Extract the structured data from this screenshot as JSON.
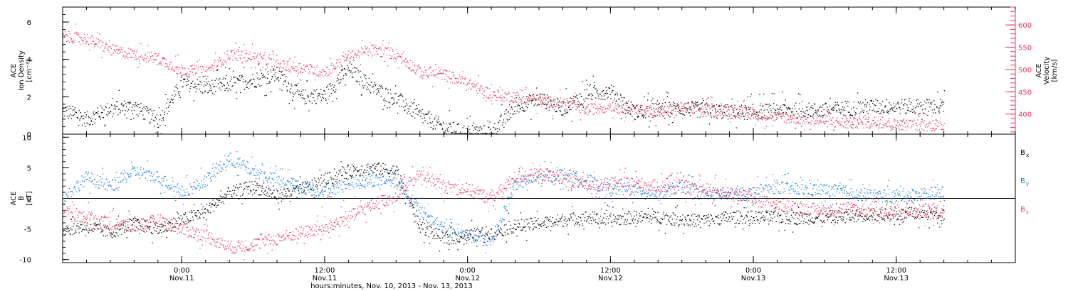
{
  "chart_data": [
    {
      "type": "scatter",
      "panel": "top",
      "x_range": [
        "2013-11-10 14:00",
        "2013-11-13 22:00"
      ],
      "left_axis": {
        "label_lines": [
          "ACE",
          "Ion Density",
          "[cm⁻³]"
        ],
        "ylim": [
          0,
          6.8
        ],
        "ticks": [
          "0",
          "2",
          "4",
          "6"
        ],
        "tick_values": [
          0,
          2,
          4,
          6
        ]
      },
      "right_axis": {
        "label_lines": [
          "ACE",
          "Velocity",
          "[km/s]"
        ],
        "ylim": [
          355,
          640
        ],
        "ticks": [
          "400",
          "450",
          "500",
          "550",
          "600"
        ],
        "tick_values": [
          400,
          450,
          500,
          550,
          600
        ],
        "color": "#e8335f"
      },
      "series": [
        {
          "axis": "left",
          "color": "#000000",
          "x": [
            "2013-11-10 14:00",
            "2013-11-10 16:00",
            "2013-11-10 18:00",
            "2013-11-10 20:00",
            "2013-11-10 22:00",
            "2013-11-11 00:00",
            "2013-11-11 02:00",
            "2013-11-11 04:00",
            "2013-11-11 06:00",
            "2013-11-11 08:00",
            "2013-11-11 10:00",
            "2013-11-11 12:00",
            "2013-11-11 14:00",
            "2013-11-11 16:00",
            "2013-11-11 18:00",
            "2013-11-11 20:00",
            "2013-11-11 22:00",
            "2013-11-12 00:00",
            "2013-11-12 02:00",
            "2013-11-12 04:00",
            "2013-11-12 06:00",
            "2013-11-12 08:00",
            "2013-11-12 10:00",
            "2013-11-12 12:00",
            "2013-11-12 14:00",
            "2013-11-12 16:00",
            "2013-11-12 18:00",
            "2013-11-12 20:00",
            "2013-11-12 22:00",
            "2013-11-13 00:00",
            "2013-11-13 02:00",
            "2013-11-13 04:00",
            "2013-11-13 06:00",
            "2013-11-13 08:00",
            "2013-11-13 10:00",
            "2013-11-13 12:00",
            "2013-11-13 14:00",
            "2013-11-13 16:00"
          ],
          "values": [
            1.3,
            0.8,
            1.4,
            1.5,
            0.7,
            2.8,
            2.5,
            2.7,
            2.9,
            3.2,
            2.0,
            2.1,
            3.5,
            2.5,
            1.9,
            1.0,
            0.4,
            0.1,
            0.1,
            1.5,
            1.9,
            1.4,
            2.2,
            2.3,
            1.2,
            1.3,
            1.4,
            1.3,
            1.2,
            1.2,
            1.3,
            1.3,
            1.3,
            1.4,
            1.5,
            1.5,
            1.5,
            1.5
          ]
        },
        {
          "axis": "right",
          "color": "#e8335f",
          "x": [
            "2013-11-10 14:00",
            "2013-11-10 16:00",
            "2013-11-10 18:00",
            "2013-11-10 20:00",
            "2013-11-10 22:00",
            "2013-11-11 00:00",
            "2013-11-11 02:00",
            "2013-11-11 04:00",
            "2013-11-11 06:00",
            "2013-11-11 08:00",
            "2013-11-11 10:00",
            "2013-11-11 12:00",
            "2013-11-11 14:00",
            "2013-11-11 16:00",
            "2013-11-11 18:00",
            "2013-11-11 20:00",
            "2013-11-11 22:00",
            "2013-11-12 00:00",
            "2013-11-12 02:00",
            "2013-11-12 04:00",
            "2013-11-12 06:00",
            "2013-11-12 08:00",
            "2013-11-12 10:00",
            "2013-11-12 12:00",
            "2013-11-12 14:00",
            "2013-11-12 16:00",
            "2013-11-12 18:00",
            "2013-11-12 20:00",
            "2013-11-12 22:00",
            "2013-11-13 00:00",
            "2013-11-13 02:00",
            "2013-11-13 04:00",
            "2013-11-13 06:00",
            "2013-11-13 08:00",
            "2013-11-13 10:00",
            "2013-11-13 12:00",
            "2013-11-13 14:00",
            "2013-11-13 16:00"
          ],
          "values": [
            575,
            570,
            545,
            535,
            525,
            500,
            495,
            535,
            530,
            510,
            505,
            495,
            530,
            545,
            535,
            495,
            490,
            470,
            445,
            440,
            430,
            425,
            410,
            420,
            410,
            405,
            415,
            410,
            408,
            400,
            395,
            390,
            385,
            380,
            383,
            378,
            376,
            375
          ]
        }
      ]
    },
    {
      "type": "scatter",
      "panel": "bottom",
      "x_range": [
        "2013-11-10 14:00",
        "2013-11-13 22:00"
      ],
      "left_axis": {
        "label_lines": [
          "ACE",
          "B",
          "[nT]"
        ],
        "ylim": [
          -10.5,
          10.5
        ],
        "ticks": [
          "-10",
          "-5",
          "0",
          "5",
          "10"
        ],
        "tick_values": [
          -10,
          -5,
          0,
          5,
          10
        ]
      },
      "zero_line": 0,
      "series": [
        {
          "name": "B",
          "subscript": "x",
          "color": "#000000",
          "x": [
            "2013-11-10 14:00",
            "2013-11-10 16:00",
            "2013-11-10 18:00",
            "2013-11-10 20:00",
            "2013-11-10 22:00",
            "2013-11-11 00:00",
            "2013-11-11 02:00",
            "2013-11-11 04:00",
            "2013-11-11 06:00",
            "2013-11-11 08:00",
            "2013-11-11 10:00",
            "2013-11-11 12:00",
            "2013-11-11 14:00",
            "2013-11-11 16:00",
            "2013-11-11 18:00",
            "2013-11-11 20:00",
            "2013-11-11 22:00",
            "2013-11-12 00:00",
            "2013-11-12 02:00",
            "2013-11-12 04:00",
            "2013-11-12 06:00",
            "2013-11-12 08:00",
            "2013-11-12 10:00",
            "2013-11-12 12:00",
            "2013-11-12 14:00",
            "2013-11-12 16:00",
            "2013-11-12 18:00",
            "2013-11-12 20:00",
            "2013-11-12 22:00",
            "2013-11-13 00:00",
            "2013-11-13 02:00",
            "2013-11-13 04:00",
            "2013-11-13 06:00",
            "2013-11-13 08:00",
            "2013-11-13 10:00",
            "2013-11-13 12:00",
            "2013-11-13 14:00",
            "2013-11-13 16:00"
          ],
          "values": [
            -5.0,
            -4.5,
            -5.5,
            -4.0,
            -5.0,
            -3.5,
            -2.0,
            1.0,
            2.0,
            0.5,
            1.5,
            3.0,
            4.5,
            5.0,
            4.5,
            -4.5,
            -6.5,
            -6.0,
            -5.5,
            -4.5,
            -4.0,
            -3.5,
            -3.0,
            -3.5,
            -3.0,
            -3.0,
            -3.5,
            -3.5,
            -3.0,
            -3.0,
            -3.0,
            -3.2,
            -3.0,
            -2.8,
            -2.6,
            -2.6,
            -2.5,
            -2.5
          ]
        },
        {
          "name": "B",
          "subscript": "y",
          "color": "#1a7de0",
          "x": [
            "2013-11-10 14:00",
            "2013-11-10 16:00",
            "2013-11-10 18:00",
            "2013-11-10 20:00",
            "2013-11-10 22:00",
            "2013-11-11 00:00",
            "2013-11-11 02:00",
            "2013-11-11 04:00",
            "2013-11-11 06:00",
            "2013-11-11 08:00",
            "2013-11-11 10:00",
            "2013-11-11 12:00",
            "2013-11-11 14:00",
            "2013-11-11 16:00",
            "2013-11-11 18:00",
            "2013-11-11 20:00",
            "2013-11-11 22:00",
            "2013-11-12 00:00",
            "2013-11-12 02:00",
            "2013-11-12 04:00",
            "2013-11-12 06:00",
            "2013-11-12 08:00",
            "2013-11-12 10:00",
            "2013-11-12 12:00",
            "2013-11-12 14:00",
            "2013-11-12 16:00",
            "2013-11-12 18:00",
            "2013-11-12 20:00",
            "2013-11-12 22:00",
            "2013-11-13 00:00",
            "2013-11-13 02:00",
            "2013-11-13 04:00",
            "2013-11-13 06:00",
            "2013-11-13 08:00",
            "2013-11-13 10:00",
            "2013-11-13 12:00",
            "2013-11-13 14:00",
            "2013-11-13 16:00"
          ],
          "values": [
            0.0,
            3.5,
            2.0,
            4.5,
            3.5,
            1.0,
            3.0,
            6.5,
            4.5,
            3.0,
            2.0,
            1.0,
            2.5,
            3.0,
            3.0,
            -2.0,
            -5.0,
            -6.0,
            -7.0,
            2.5,
            3.5,
            4.0,
            3.0,
            1.5,
            1.5,
            1.0,
            2.0,
            1.0,
            0.5,
            1.0,
            2.0,
            1.5,
            1.5,
            1.0,
            0.5,
            0.5,
            0.8,
            1.0
          ]
        },
        {
          "name": "B",
          "subscript": "z",
          "color": "#e8335f",
          "x": [
            "2013-11-10 14:00",
            "2013-11-10 16:00",
            "2013-11-10 18:00",
            "2013-11-10 20:00",
            "2013-11-10 22:00",
            "2013-11-11 00:00",
            "2013-11-11 02:00",
            "2013-11-11 04:00",
            "2013-11-11 06:00",
            "2013-11-11 08:00",
            "2013-11-11 10:00",
            "2013-11-11 12:00",
            "2013-11-11 14:00",
            "2013-11-11 16:00",
            "2013-11-11 18:00",
            "2013-11-11 20:00",
            "2013-11-11 22:00",
            "2013-11-12 00:00",
            "2013-11-12 02:00",
            "2013-11-12 04:00",
            "2013-11-12 06:00",
            "2013-11-12 08:00",
            "2013-11-12 10:00",
            "2013-11-12 12:00",
            "2013-11-12 14:00",
            "2013-11-12 16:00",
            "2013-11-12 18:00",
            "2013-11-12 20:00",
            "2013-11-12 22:00",
            "2013-11-13 00:00",
            "2013-11-13 02:00",
            "2013-11-13 04:00",
            "2013-11-13 06:00",
            "2013-11-13 08:00",
            "2013-11-13 10:00",
            "2013-11-13 12:00",
            "2013-11-13 14:00",
            "2013-11-13 16:00"
          ],
          "values": [
            -2.0,
            -3.0,
            -4.0,
            -4.5,
            -3.5,
            -5.0,
            -6.0,
            -8.0,
            -7.5,
            -6.5,
            -5.5,
            -5.0,
            -3.0,
            -1.0,
            0.5,
            4.0,
            2.0,
            1.5,
            0.0,
            3.5,
            4.0,
            3.5,
            2.0,
            2.5,
            2.5,
            2.0,
            2.0,
            1.5,
            1.0,
            0.0,
            -1.0,
            -1.5,
            -2.0,
            -1.5,
            -2.0,
            -2.5,
            -2.0,
            -2.0
          ]
        }
      ]
    }
  ],
  "x_axis": {
    "ticks": [
      {
        "value": "2013-11-11 00:00",
        "line1": "0:00",
        "line2": "Nov.11"
      },
      {
        "value": "2013-11-11 12:00",
        "line1": "12:00",
        "line2": "Nov.11"
      },
      {
        "value": "2013-11-12 00:00",
        "line1": "0:00",
        "line2": "Nov.12"
      },
      {
        "value": "2013-11-12 12:00",
        "line1": "12:00",
        "line2": "Nov.12"
      },
      {
        "value": "2013-11-13 00:00",
        "line1": "0:00",
        "line2": "Nov.13"
      },
      {
        "value": "2013-11-13 12:00",
        "line1": "12:00",
        "line2": "Nov.13"
      }
    ],
    "title": "hours:minutes, Nov. 10, 2013 - Nov. 13, 2013"
  }
}
